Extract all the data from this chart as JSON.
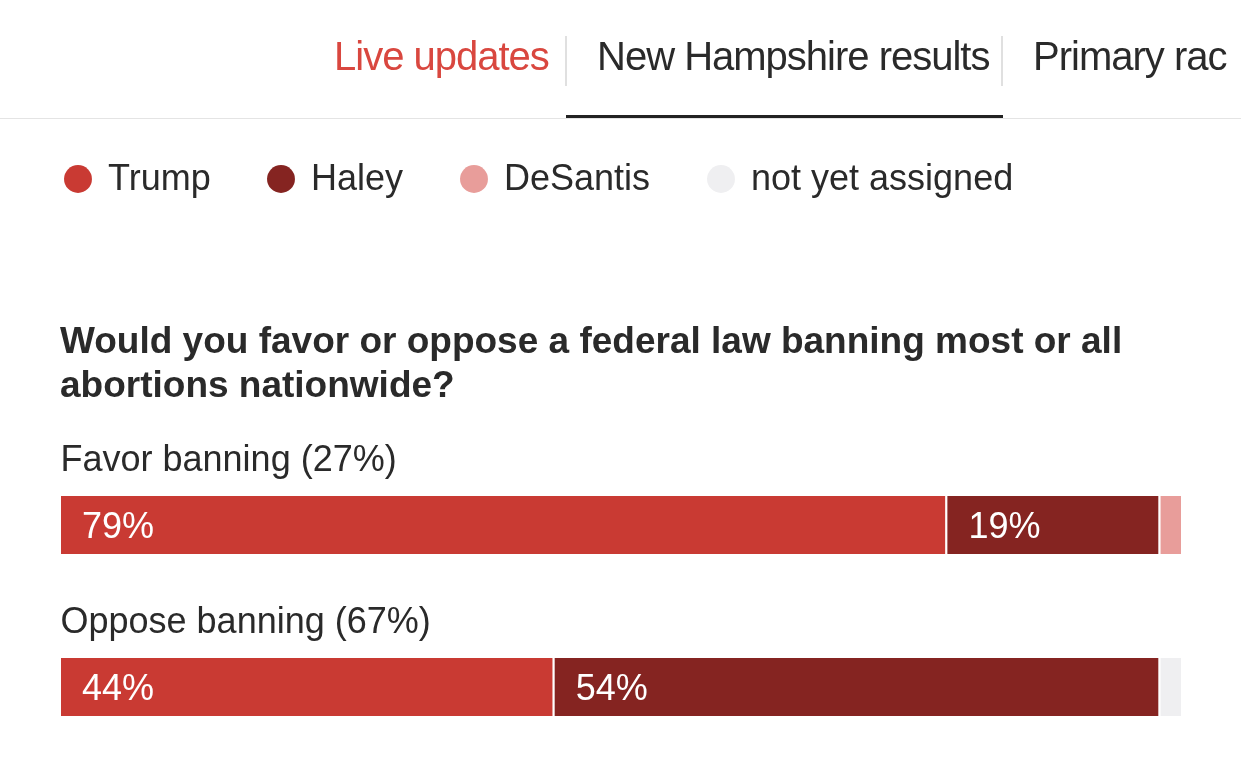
{
  "chart_data": {
    "type": "bar",
    "orientation": "horizontal",
    "stacked": true,
    "title": "Would you favor or oppose a federal law banning most or all abortions nationwide?",
    "categories": [
      "Favor banning (27%)",
      "Oppose banning (67%)"
    ],
    "series": [
      {
        "name": "Trump",
        "color": "#c93a33",
        "values": [
          79,
          44
        ],
        "value_labels": [
          "79%",
          "44%"
        ]
      },
      {
        "name": "Haley",
        "color": "#852421",
        "values": [
          19,
          54
        ],
        "value_labels": [
          "19%",
          "54%"
        ]
      },
      {
        "name": "DeSantis",
        "color": "#e89d9a",
        "values": [
          2,
          null
        ],
        "value_labels": [
          null,
          null
        ]
      },
      {
        "name": "not yet assigned",
        "color": "#efeff1",
        "values": [
          null,
          2
        ],
        "value_labels": [
          null,
          null
        ]
      }
    ],
    "legend": "top",
    "annotations": [
      "Live updates",
      "New Hampshire results",
      "Primary rac"
    ]
  }
}
